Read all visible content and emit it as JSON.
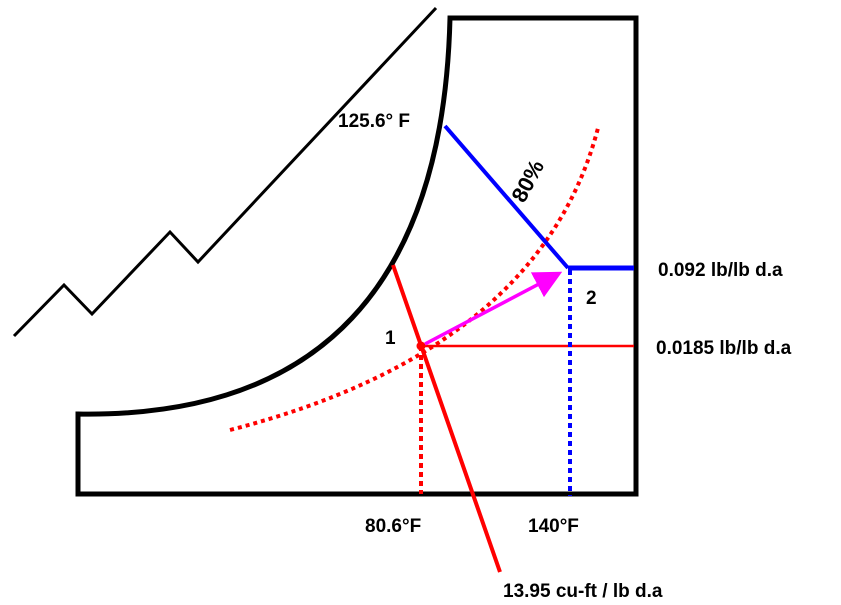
{
  "diagram": {
    "labels": {
      "t_wet_bulb": "125.6° F",
      "rh_curve": "80%",
      "humidity_state2": "0.092 lb/lb d.a",
      "humidity_state1": "0.0185 lb/lb d.a",
      "point1": "1",
      "point2": "2",
      "t_state1": "80.6°F",
      "t_state2": "140°F",
      "specific_volume": "13.95 cu-ft / lb d.a"
    },
    "colors": {
      "outline": "#000000",
      "state1_lines": "#ff0000",
      "state2_lines": "#0000ff",
      "process_arrow": "#ff00ff",
      "rh_curve": "#ff0000"
    }
  }
}
